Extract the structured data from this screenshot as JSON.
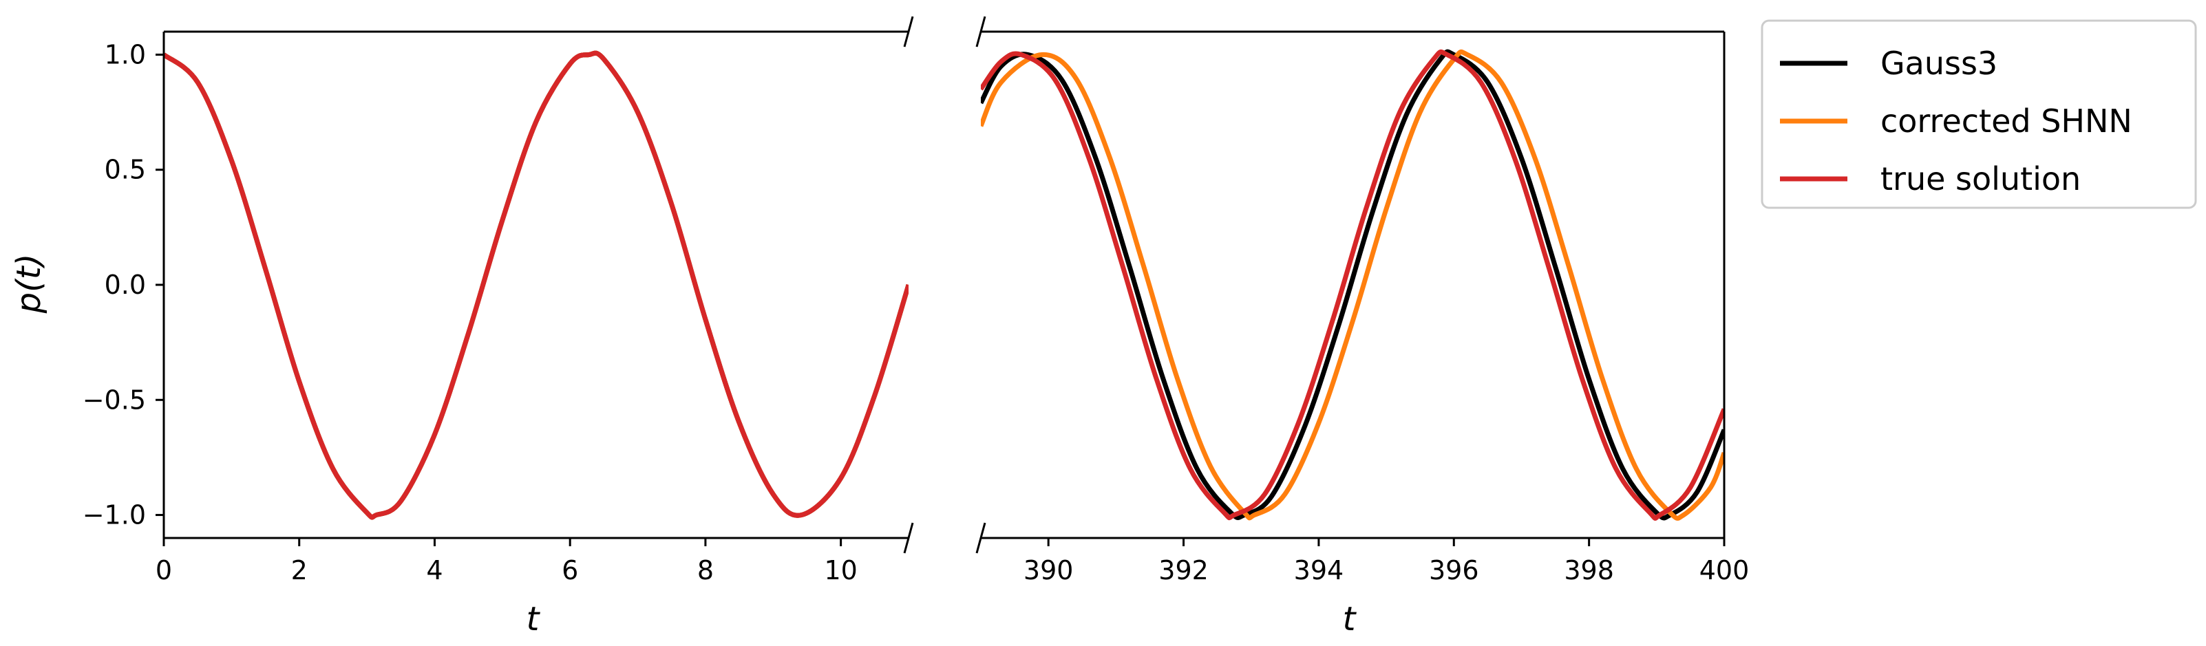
{
  "chart_data": {
    "type": "line",
    "ylabel": "p(t)",
    "ylim": [
      -1.1,
      1.1
    ],
    "yticks": [
      -1.0,
      -0.5,
      0.0,
      0.5,
      1.0
    ],
    "ytick_labels": [
      "−1.0",
      "−0.5",
      "0.0",
      "0.5",
      "1.0"
    ],
    "grid": false,
    "legend_placement": "outside-top-right",
    "panels": [
      {
        "xlabel": "t",
        "xlim": [
          0,
          11
        ],
        "xticks": [
          0,
          2,
          4,
          6,
          8,
          10
        ],
        "xtick_labels": [
          "0",
          "2",
          "4",
          "6",
          "8",
          "10"
        ]
      },
      {
        "xlabel": "t",
        "xlim": [
          389,
          400
        ],
        "xticks": [
          390,
          392,
          394,
          396,
          398,
          400
        ],
        "xtick_labels": [
          "390",
          "392",
          "394",
          "396",
          "398",
          "400"
        ]
      }
    ],
    "series": [
      {
        "name": "Gauss3",
        "color": "#000000",
        "points": [
          [
            0,
            1.0
          ],
          [
            0.5,
            0.88
          ],
          [
            1.0,
            0.54
          ],
          [
            1.5,
            0.07
          ],
          [
            2.0,
            -0.42
          ],
          [
            2.5,
            -0.8
          ],
          [
            3.0,
            -0.99
          ],
          [
            3.14,
            -1.0
          ],
          [
            3.5,
            -0.94
          ],
          [
            4.0,
            -0.65
          ],
          [
            4.5,
            -0.21
          ],
          [
            5.0,
            0.28
          ],
          [
            5.5,
            0.71
          ],
          [
            6.0,
            0.96
          ],
          [
            6.28,
            1.0
          ],
          [
            6.5,
            0.98
          ],
          [
            7.0,
            0.75
          ],
          [
            7.5,
            0.35
          ],
          [
            8.0,
            -0.15
          ],
          [
            8.5,
            -0.6
          ],
          [
            9.0,
            -0.91
          ],
          [
            9.42,
            -1.0
          ],
          [
            10.0,
            -0.84
          ],
          [
            10.5,
            -0.48
          ],
          [
            11.0,
            0.0
          ],
          [
            389.0,
            0.79
          ],
          [
            389.3,
            0.95
          ],
          [
            389.7,
            1.0
          ],
          [
            390.2,
            0.89
          ],
          [
            390.7,
            0.55
          ],
          [
            391.2,
            0.08
          ],
          [
            391.7,
            -0.41
          ],
          [
            392.2,
            -0.8
          ],
          [
            392.7,
            -0.99
          ],
          [
            392.9,
            -1.0
          ],
          [
            393.3,
            -0.92
          ],
          [
            393.8,
            -0.61
          ],
          [
            394.3,
            -0.17
          ],
          [
            394.8,
            0.32
          ],
          [
            395.3,
            0.74
          ],
          [
            395.8,
            0.98
          ],
          [
            396.0,
            1.0
          ],
          [
            396.5,
            0.88
          ],
          [
            397.0,
            0.55
          ],
          [
            397.5,
            0.08
          ],
          [
            398.0,
            -0.41
          ],
          [
            398.5,
            -0.8
          ],
          [
            399.0,
            -0.99
          ],
          [
            399.2,
            -1.0
          ],
          [
            399.6,
            -0.9
          ],
          [
            400.0,
            -0.63
          ]
        ]
      },
      {
        "name": "corrected SHNN",
        "color": "#ff7f0e",
        "points": [
          [
            0,
            1.0
          ],
          [
            0.5,
            0.88
          ],
          [
            1.0,
            0.54
          ],
          [
            1.5,
            0.07
          ],
          [
            2.0,
            -0.42
          ],
          [
            2.5,
            -0.8
          ],
          [
            3.0,
            -0.99
          ],
          [
            3.14,
            -1.0
          ],
          [
            3.5,
            -0.94
          ],
          [
            4.0,
            -0.65
          ],
          [
            4.5,
            -0.21
          ],
          [
            5.0,
            0.28
          ],
          [
            5.5,
            0.71
          ],
          [
            6.0,
            0.96
          ],
          [
            6.28,
            1.0
          ],
          [
            6.5,
            0.98
          ],
          [
            7.0,
            0.75
          ],
          [
            7.5,
            0.35
          ],
          [
            8.0,
            -0.15
          ],
          [
            8.5,
            -0.6
          ],
          [
            9.0,
            -0.91
          ],
          [
            9.42,
            -1.0
          ],
          [
            10.0,
            -0.84
          ],
          [
            10.5,
            -0.48
          ],
          [
            11.0,
            0.0
          ],
          [
            389.0,
            0.69
          ],
          [
            389.3,
            0.88
          ],
          [
            389.9,
            1.0
          ],
          [
            390.4,
            0.9
          ],
          [
            390.9,
            0.56
          ],
          [
            391.4,
            0.09
          ],
          [
            391.9,
            -0.4
          ],
          [
            392.4,
            -0.79
          ],
          [
            392.9,
            -0.99
          ],
          [
            393.05,
            -1.0
          ],
          [
            393.5,
            -0.91
          ],
          [
            394.0,
            -0.6
          ],
          [
            394.5,
            -0.16
          ],
          [
            395.0,
            0.33
          ],
          [
            395.5,
            0.75
          ],
          [
            396.0,
            0.98
          ],
          [
            396.2,
            1.0
          ],
          [
            396.7,
            0.88
          ],
          [
            397.2,
            0.55
          ],
          [
            397.7,
            0.08
          ],
          [
            398.2,
            -0.41
          ],
          [
            398.7,
            -0.8
          ],
          [
            399.2,
            -0.99
          ],
          [
            399.4,
            -1.0
          ],
          [
            399.8,
            -0.88
          ],
          [
            400.0,
            -0.73
          ]
        ]
      },
      {
        "name": "true solution",
        "color": "#d62728",
        "points": [
          [
            0,
            1.0
          ],
          [
            0.5,
            0.88
          ],
          [
            1.0,
            0.54
          ],
          [
            1.5,
            0.07
          ],
          [
            2.0,
            -0.42
          ],
          [
            2.5,
            -0.8
          ],
          [
            3.0,
            -0.99
          ],
          [
            3.14,
            -1.0
          ],
          [
            3.5,
            -0.94
          ],
          [
            4.0,
            -0.65
          ],
          [
            4.5,
            -0.21
          ],
          [
            5.0,
            0.28
          ],
          [
            5.5,
            0.71
          ],
          [
            6.0,
            0.96
          ],
          [
            6.28,
            1.0
          ],
          [
            6.5,
            0.98
          ],
          [
            7.0,
            0.75
          ],
          [
            7.5,
            0.35
          ],
          [
            8.0,
            -0.15
          ],
          [
            8.5,
            -0.6
          ],
          [
            9.0,
            -0.91
          ],
          [
            9.42,
            -1.0
          ],
          [
            10.0,
            -0.84
          ],
          [
            10.5,
            -0.48
          ],
          [
            11.0,
            0.0
          ],
          [
            389.0,
            0.85
          ],
          [
            389.3,
            0.97
          ],
          [
            389.6,
            1.0
          ],
          [
            390.1,
            0.89
          ],
          [
            390.6,
            0.55
          ],
          [
            391.1,
            0.08
          ],
          [
            391.6,
            -0.41
          ],
          [
            392.1,
            -0.8
          ],
          [
            392.6,
            -0.99
          ],
          [
            392.75,
            -1.0
          ],
          [
            393.2,
            -0.91
          ],
          [
            393.7,
            -0.6
          ],
          [
            394.2,
            -0.16
          ],
          [
            394.7,
            0.33
          ],
          [
            395.2,
            0.75
          ],
          [
            395.7,
            0.98
          ],
          [
            395.9,
            1.0
          ],
          [
            396.4,
            0.88
          ],
          [
            396.9,
            0.55
          ],
          [
            397.4,
            0.08
          ],
          [
            397.9,
            -0.41
          ],
          [
            398.4,
            -0.8
          ],
          [
            398.9,
            -0.99
          ],
          [
            399.05,
            -1.0
          ],
          [
            399.5,
            -0.88
          ],
          [
            400.0,
            -0.54
          ]
        ]
      }
    ]
  }
}
